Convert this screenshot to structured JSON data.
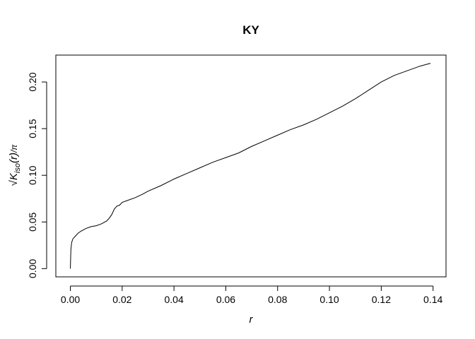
{
  "chart_data": {
    "type": "line",
    "title": "KY",
    "xlabel": "r",
    "ylabel_parts": {
      "radical": "√",
      "k": "K",
      "sub": "iso",
      "arg": "(r)",
      "pi": "/π"
    },
    "xlim": [
      -0.0056,
      0.145
    ],
    "ylim": [
      -0.0088,
      0.2288
    ],
    "x_ticks": [
      0.0,
      0.02,
      0.04,
      0.06,
      0.08,
      0.1,
      0.12,
      0.14
    ],
    "x_tick_labels": [
      "0.00",
      "0.02",
      "0.04",
      "0.06",
      "0.08",
      "0.10",
      "0.12",
      "0.14"
    ],
    "y_ticks": [
      0.0,
      0.05,
      0.1,
      0.15,
      0.2
    ],
    "y_tick_labels": [
      "0.00",
      "0.05",
      "0.10",
      "0.15",
      "0.20"
    ],
    "grid": false,
    "line_color": "#000000",
    "series": [
      {
        "x": [
          0.0,
          0.0002,
          0.0005,
          0.001,
          0.002,
          0.003,
          0.004,
          0.006,
          0.008,
          0.01,
          0.012,
          0.014,
          0.015,
          0.016,
          0.017,
          0.018,
          0.019,
          0.02,
          0.022,
          0.025,
          0.028,
          0.03,
          0.035,
          0.04,
          0.045,
          0.05,
          0.055,
          0.06,
          0.065,
          0.07,
          0.075,
          0.08,
          0.085,
          0.09,
          0.095,
          0.1,
          0.105,
          0.11,
          0.115,
          0.12,
          0.125,
          0.13,
          0.135,
          0.139
        ],
        "y": [
          0.0,
          0.02,
          0.028,
          0.032,
          0.035,
          0.038,
          0.04,
          0.043,
          0.045,
          0.046,
          0.048,
          0.051,
          0.054,
          0.058,
          0.064,
          0.067,
          0.068,
          0.071,
          0.073,
          0.076,
          0.08,
          0.083,
          0.089,
          0.096,
          0.102,
          0.108,
          0.114,
          0.119,
          0.124,
          0.131,
          0.137,
          0.143,
          0.149,
          0.154,
          0.16,
          0.167,
          0.174,
          0.182,
          0.191,
          0.2,
          0.207,
          0.212,
          0.217,
          0.22
        ]
      }
    ]
  }
}
